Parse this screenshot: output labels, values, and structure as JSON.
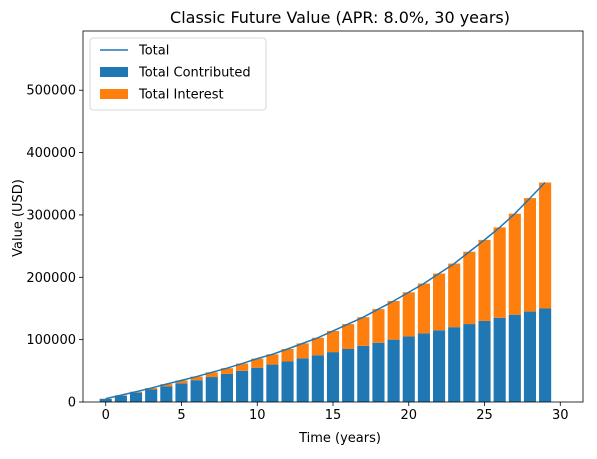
{
  "chart_data": {
    "type": "bar",
    "title": "Classic Future Value (APR: 8.0%, 30 years)",
    "xlabel": "Time (years)",
    "ylabel": "Value (USD)",
    "xlim": [
      -1.5,
      31.5
    ],
    "ylim": [
      0,
      595000
    ],
    "xticks": [
      0,
      5,
      10,
      15,
      20,
      25,
      30
    ],
    "yticks": [
      0,
      100000,
      200000,
      300000,
      400000,
      500000
    ],
    "legend_position": "top-left",
    "grid": false,
    "x": [
      0,
      1,
      2,
      3,
      4,
      5,
      6,
      7,
      8,
      9,
      10,
      11,
      12,
      13,
      14,
      15,
      16,
      17,
      18,
      19,
      20,
      21,
      22,
      23,
      24,
      25,
      26,
      27,
      28,
      29
    ],
    "series": [
      {
        "name": "Total Contributed",
        "type": "bar",
        "color": "#1f77b4",
        "values": [
          5000,
          10000,
          15000,
          20000,
          25000,
          30000,
          35000,
          40000,
          45000,
          50000,
          55000,
          60000,
          65000,
          70000,
          75000,
          80000,
          85000,
          90000,
          95000,
          100000,
          105000,
          110000,
          115000,
          120000,
          125000,
          130000,
          135000,
          140000,
          145000,
          150000
        ]
      },
      {
        "name": "Total Interest",
        "type": "bar",
        "stacked_on": "Total Contributed",
        "color": "#ff7f0e",
        "values": [
          400,
          832,
          1530,
          2328,
          3680,
          4620,
          5800,
          7600,
          9260,
          11700,
          14600,
          16500,
          20000,
          24000,
          28000,
          34000,
          40000,
          46000,
          54000,
          62000,
          71000,
          80000,
          91000,
          102000,
          116000,
          130000,
          145000,
          162000,
          182000,
          202000
        ]
      },
      {
        "name": "Total",
        "type": "line",
        "color": "#1f77b4",
        "values": [
          5400,
          10832,
          16530,
          22328,
          28680,
          34620,
          40800,
          47600,
          54260,
          61700,
          69600,
          76500,
          85000,
          94000,
          103000,
          114000,
          125000,
          136000,
          149000,
          162000,
          176000,
          190000,
          206000,
          222000,
          241000,
          260000,
          280000,
          302000,
          327000,
          352000
        ]
      }
    ]
  }
}
